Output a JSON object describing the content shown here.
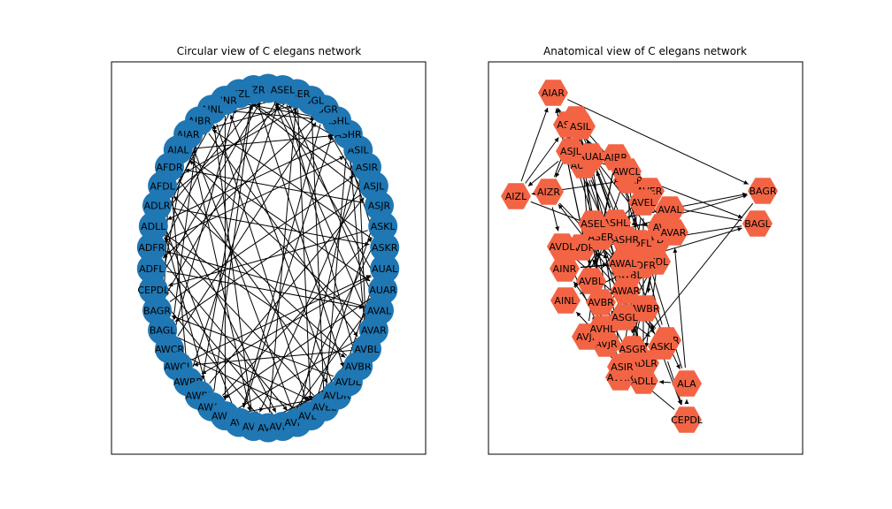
{
  "figure": {
    "panels": [
      {
        "id": "circular",
        "title": "Circular view of C elegans network",
        "node_color": "#1f77b4",
        "node_shape": "circle"
      },
      {
        "id": "anatomical",
        "title": "Anatomical view of C elegans network",
        "node_color": "#f26444",
        "node_shape": "hexagon"
      }
    ],
    "edge_color": "#000000",
    "node_labels": [
      "ALA",
      "AIZR",
      "AIZL",
      "AINR",
      "AINL",
      "AIBR",
      "AIAR",
      "AIAL",
      "AFDR",
      "AFDL",
      "ADLR",
      "ADLL",
      "ADFR",
      "ADFL",
      "CEPDL",
      "BAGR",
      "BAGL",
      "AWCR",
      "AWCL",
      "AWBR",
      "AWBL",
      "AWAR",
      "AWAL",
      "AVL",
      "AVJR",
      "AVJL",
      "AVHR",
      "AVHL",
      "AVER",
      "AVEL",
      "AVDR",
      "AVDL",
      "AVBR",
      "AVBL",
      "AVAR",
      "AVAL",
      "AUAR",
      "AUAL",
      "ASKR",
      "ASKL",
      "ASJR",
      "ASJL",
      "ASIR",
      "ASIL",
      "ASHR",
      "ASHL",
      "ASGR",
      "ASGL",
      "ASER",
      "ASEL"
    ],
    "edges": [
      [
        0,
        5
      ],
      [
        0,
        11
      ],
      [
        0,
        34
      ],
      [
        1,
        7
      ],
      [
        1,
        20
      ],
      [
        1,
        31
      ],
      [
        2,
        6
      ],
      [
        2,
        13
      ],
      [
        2,
        40
      ],
      [
        3,
        9
      ],
      [
        3,
        22
      ],
      [
        3,
        45
      ],
      [
        4,
        12
      ],
      [
        4,
        28
      ],
      [
        5,
        17
      ],
      [
        5,
        33
      ],
      [
        5,
        48
      ],
      [
        6,
        15
      ],
      [
        6,
        24
      ],
      [
        7,
        10
      ],
      [
        7,
        36
      ],
      [
        7,
        44
      ],
      [
        8,
        19
      ],
      [
        8,
        30
      ],
      [
        9,
        26
      ],
      [
        9,
        47
      ],
      [
        10,
        21
      ],
      [
        10,
        38
      ],
      [
        11,
        3
      ],
      [
        11,
        32
      ],
      [
        12,
        27
      ],
      [
        12,
        43
      ],
      [
        13,
        18
      ],
      [
        13,
        35
      ],
      [
        14,
        0
      ],
      [
        14,
        25
      ],
      [
        15,
        42
      ],
      [
        16,
        8
      ],
      [
        16,
        29
      ],
      [
        17,
        2
      ],
      [
        17,
        46
      ],
      [
        18,
        37
      ],
      [
        19,
        14
      ],
      [
        19,
        49
      ],
      [
        20,
        23
      ],
      [
        20,
        41
      ],
      [
        21,
        1
      ],
      [
        21,
        39
      ],
      [
        22,
        16
      ],
      [
        22,
        34
      ],
      [
        23,
        10
      ],
      [
        23,
        45
      ],
      [
        24,
        4
      ],
      [
        24,
        31
      ],
      [
        25,
        20
      ],
      [
        25,
        48
      ],
      [
        26,
        13
      ],
      [
        26,
        36
      ],
      [
        27,
        6
      ],
      [
        27,
        43
      ],
      [
        28,
        17
      ],
      [
        28,
        40
      ],
      [
        29,
        11
      ],
      [
        29,
        47
      ],
      [
        30,
        3
      ],
      [
        30,
        22
      ],
      [
        31,
        15
      ],
      [
        31,
        38
      ],
      [
        32,
        9
      ],
      [
        32,
        25
      ],
      [
        33,
        18
      ],
      [
        33,
        44
      ],
      [
        34,
        7
      ],
      [
        34,
        27
      ],
      [
        35,
        12
      ],
      [
        35,
        49
      ],
      [
        36,
        0
      ],
      [
        36,
        21
      ],
      [
        37,
        19
      ],
      [
        37,
        42
      ],
      [
        38,
        5
      ],
      [
        38,
        30
      ],
      [
        39,
        14
      ],
      [
        39,
        26
      ],
      [
        40,
        8
      ],
      [
        40,
        35
      ],
      [
        41,
        2
      ],
      [
        41,
        16
      ],
      [
        42,
        24
      ],
      [
        42,
        46
      ],
      [
        43,
        1
      ],
      [
        43,
        33
      ],
      [
        44,
        11
      ],
      [
        44,
        29
      ],
      [
        45,
        4
      ],
      [
        45,
        37
      ],
      [
        46,
        13
      ],
      [
        46,
        23
      ],
      [
        47,
        6
      ],
      [
        47,
        39
      ],
      [
        48,
        10
      ],
      [
        48,
        28
      ],
      [
        49,
        15
      ],
      [
        49,
        32
      ]
    ]
  }
}
